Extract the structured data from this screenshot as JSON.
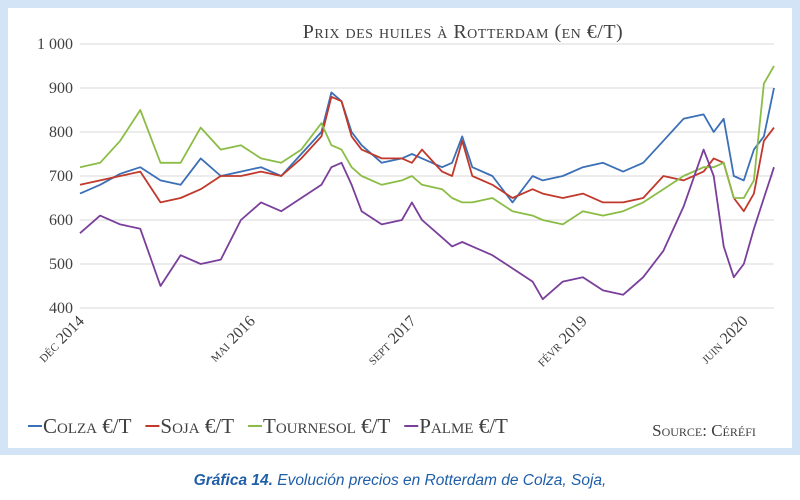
{
  "chart_data": {
    "type": "line",
    "title": "Prix des huiles à Rotterdam (en €/T)",
    "ylim": [
      400,
      1000
    ],
    "yticks": [
      400,
      500,
      600,
      700,
      800,
      900,
      1000
    ],
    "ytick_labels": [
      "400",
      "500",
      "600",
      "700",
      "800",
      "900",
      "1 000"
    ],
    "x_start": "2014-12",
    "x_end": "2020-09",
    "xtick_labels": [
      {
        "date": "2014-12",
        "label": "déc 2014"
      },
      {
        "date": "2016-05",
        "label": "mai 2016"
      },
      {
        "date": "2017-09",
        "label": "sept 2017"
      },
      {
        "date": "2019-02",
        "label": "févr 2019"
      },
      {
        "date": "2020-06",
        "label": "juin 2020"
      }
    ],
    "grid": true,
    "legend_position": "bottom",
    "source": "Source: Céréfi",
    "series": [
      {
        "name": "Colza €/T",
        "color": "#3b6fb6",
        "points": [
          [
            "2014-12",
            660
          ],
          [
            "2015-02",
            680
          ],
          [
            "2015-04",
            705
          ],
          [
            "2015-06",
            720
          ],
          [
            "2015-08",
            690
          ],
          [
            "2015-10",
            680
          ],
          [
            "2015-12",
            740
          ],
          [
            "2016-02",
            700
          ],
          [
            "2016-04",
            710
          ],
          [
            "2016-06",
            720
          ],
          [
            "2016-08",
            700
          ],
          [
            "2016-10",
            750
          ],
          [
            "2016-12",
            800
          ],
          [
            "2017-01",
            890
          ],
          [
            "2017-02",
            870
          ],
          [
            "2017-03",
            800
          ],
          [
            "2017-04",
            770
          ],
          [
            "2017-06",
            730
          ],
          [
            "2017-08",
            740
          ],
          [
            "2017-09",
            750
          ],
          [
            "2017-10",
            740
          ],
          [
            "2017-12",
            720
          ],
          [
            "2018-01",
            730
          ],
          [
            "2018-02",
            790
          ],
          [
            "2018-03",
            720
          ],
          [
            "2018-05",
            700
          ],
          [
            "2018-07",
            640
          ],
          [
            "2018-09",
            700
          ],
          [
            "2018-10",
            690
          ],
          [
            "2018-12",
            700
          ],
          [
            "2019-02",
            720
          ],
          [
            "2019-04",
            730
          ],
          [
            "2019-06",
            710
          ],
          [
            "2019-08",
            730
          ],
          [
            "2019-10",
            780
          ],
          [
            "2019-12",
            830
          ],
          [
            "2020-02",
            840
          ],
          [
            "2020-03",
            800
          ],
          [
            "2020-04",
            830
          ],
          [
            "2020-05",
            700
          ],
          [
            "2020-06",
            690
          ],
          [
            "2020-07",
            760
          ],
          [
            "2020-08",
            790
          ],
          [
            "2020-09",
            900
          ]
        ]
      },
      {
        "name": "Soja €/T",
        "color": "#c0392b",
        "points": [
          [
            "2014-12",
            680
          ],
          [
            "2015-02",
            690
          ],
          [
            "2015-04",
            700
          ],
          [
            "2015-06",
            710
          ],
          [
            "2015-08",
            640
          ],
          [
            "2015-10",
            650
          ],
          [
            "2015-12",
            670
          ],
          [
            "2016-02",
            700
          ],
          [
            "2016-04",
            700
          ],
          [
            "2016-06",
            710
          ],
          [
            "2016-08",
            700
          ],
          [
            "2016-10",
            740
          ],
          [
            "2016-12",
            790
          ],
          [
            "2017-01",
            880
          ],
          [
            "2017-02",
            870
          ],
          [
            "2017-03",
            790
          ],
          [
            "2017-04",
            760
          ],
          [
            "2017-06",
            740
          ],
          [
            "2017-08",
            740
          ],
          [
            "2017-09",
            730
          ],
          [
            "2017-10",
            760
          ],
          [
            "2017-12",
            710
          ],
          [
            "2018-01",
            700
          ],
          [
            "2018-02",
            780
          ],
          [
            "2018-03",
            700
          ],
          [
            "2018-05",
            680
          ],
          [
            "2018-07",
            650
          ],
          [
            "2018-09",
            670
          ],
          [
            "2018-10",
            660
          ],
          [
            "2018-12",
            650
          ],
          [
            "2019-02",
            660
          ],
          [
            "2019-04",
            640
          ],
          [
            "2019-06",
            640
          ],
          [
            "2019-08",
            650
          ],
          [
            "2019-10",
            700
          ],
          [
            "2019-12",
            690
          ],
          [
            "2020-02",
            710
          ],
          [
            "2020-03",
            740
          ],
          [
            "2020-04",
            730
          ],
          [
            "2020-05",
            650
          ],
          [
            "2020-06",
            620
          ],
          [
            "2020-07",
            660
          ],
          [
            "2020-08",
            780
          ],
          [
            "2020-09",
            810
          ]
        ]
      },
      {
        "name": "Tournesol €/T",
        "color": "#8bbd46",
        "points": [
          [
            "2014-12",
            720
          ],
          [
            "2015-02",
            730
          ],
          [
            "2015-04",
            780
          ],
          [
            "2015-06",
            850
          ],
          [
            "2015-08",
            730
          ],
          [
            "2015-10",
            730
          ],
          [
            "2015-12",
            810
          ],
          [
            "2016-02",
            760
          ],
          [
            "2016-04",
            770
          ],
          [
            "2016-06",
            740
          ],
          [
            "2016-08",
            730
          ],
          [
            "2016-10",
            760
          ],
          [
            "2016-12",
            820
          ],
          [
            "2017-01",
            770
          ],
          [
            "2017-02",
            760
          ],
          [
            "2017-03",
            720
          ],
          [
            "2017-04",
            700
          ],
          [
            "2017-06",
            680
          ],
          [
            "2017-08",
            690
          ],
          [
            "2017-09",
            700
          ],
          [
            "2017-10",
            680
          ],
          [
            "2017-12",
            670
          ],
          [
            "2018-01",
            650
          ],
          [
            "2018-02",
            640
          ],
          [
            "2018-03",
            640
          ],
          [
            "2018-05",
            650
          ],
          [
            "2018-07",
            620
          ],
          [
            "2018-09",
            610
          ],
          [
            "2018-10",
            600
          ],
          [
            "2018-12",
            590
          ],
          [
            "2019-02",
            620
          ],
          [
            "2019-04",
            610
          ],
          [
            "2019-06",
            620
          ],
          [
            "2019-08",
            640
          ],
          [
            "2019-10",
            670
          ],
          [
            "2019-12",
            700
          ],
          [
            "2020-02",
            720
          ],
          [
            "2020-03",
            720
          ],
          [
            "2020-04",
            730
          ],
          [
            "2020-05",
            650
          ],
          [
            "2020-06",
            650
          ],
          [
            "2020-07",
            690
          ],
          [
            "2020-08",
            910
          ],
          [
            "2020-09",
            950
          ]
        ]
      },
      {
        "name": "Palme €/T",
        "color": "#7a3f9b",
        "points": [
          [
            "2014-12",
            570
          ],
          [
            "2015-02",
            610
          ],
          [
            "2015-04",
            590
          ],
          [
            "2015-06",
            580
          ],
          [
            "2015-08",
            450
          ],
          [
            "2015-10",
            520
          ],
          [
            "2015-12",
            500
          ],
          [
            "2016-02",
            510
          ],
          [
            "2016-04",
            600
          ],
          [
            "2016-06",
            640
          ],
          [
            "2016-08",
            620
          ],
          [
            "2016-10",
            650
          ],
          [
            "2016-12",
            680
          ],
          [
            "2017-01",
            720
          ],
          [
            "2017-02",
            730
          ],
          [
            "2017-03",
            680
          ],
          [
            "2017-04",
            620
          ],
          [
            "2017-06",
            590
          ],
          [
            "2017-08",
            600
          ],
          [
            "2017-09",
            640
          ],
          [
            "2017-10",
            600
          ],
          [
            "2017-12",
            560
          ],
          [
            "2018-01",
            540
          ],
          [
            "2018-02",
            550
          ],
          [
            "2018-03",
            540
          ],
          [
            "2018-05",
            520
          ],
          [
            "2018-07",
            490
          ],
          [
            "2018-09",
            460
          ],
          [
            "2018-10",
            420
          ],
          [
            "2018-12",
            460
          ],
          [
            "2019-02",
            470
          ],
          [
            "2019-04",
            440
          ],
          [
            "2019-06",
            430
          ],
          [
            "2019-08",
            470
          ],
          [
            "2019-10",
            530
          ],
          [
            "2019-12",
            630
          ],
          [
            "2020-02",
            760
          ],
          [
            "2020-03",
            700
          ],
          [
            "2020-04",
            540
          ],
          [
            "2020-05",
            470
          ],
          [
            "2020-06",
            500
          ],
          [
            "2020-07",
            580
          ],
          [
            "2020-08",
            650
          ],
          [
            "2020-09",
            720
          ]
        ]
      }
    ]
  },
  "caption": {
    "bold_label": "Gráfica 14.",
    "text": " Evolución precios en Rotterdam de Colza, Soja,"
  }
}
